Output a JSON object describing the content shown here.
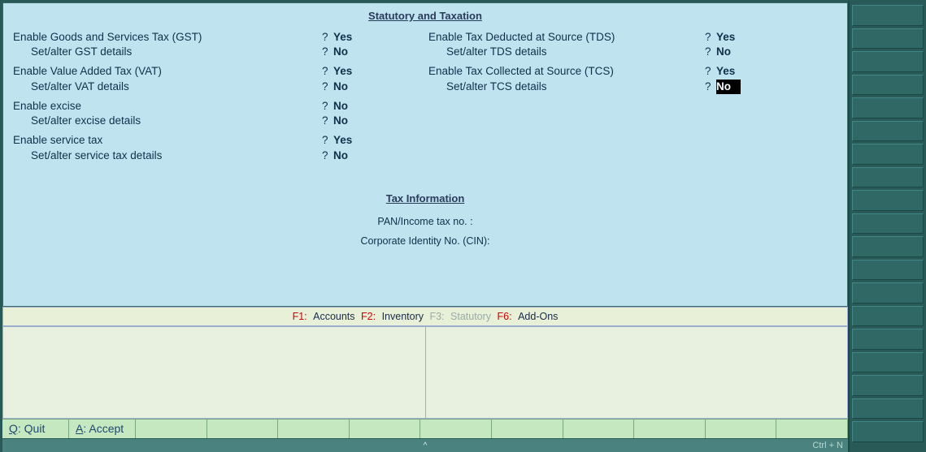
{
  "colors": {
    "panel_bg": "#bfe4f0",
    "text": "#10304a",
    "heading": "#2a3a5a",
    "func_red": "#cc0000",
    "func_disabled": "#9aa",
    "bottom_bg": "#c5e8c0",
    "rail_bg": "#2a5a57",
    "rail_btn": "#2f6865",
    "status_bg": "#4a8280",
    "highlight_bg": "#000000",
    "highlight_fg": "#ffffff"
  },
  "headings": {
    "statutory": "Statutory and Taxation",
    "tax_info": "Tax Information"
  },
  "left_column": {
    "gst": {
      "label": "Enable Goods and Services Tax (GST)",
      "value": "Yes",
      "sub_label": "Set/alter GST details",
      "sub_value": "No"
    },
    "vat": {
      "label": "Enable Value Added Tax (VAT)",
      "value": "Yes",
      "sub_label": "Set/alter VAT details",
      "sub_value": "No"
    },
    "excise": {
      "label": "Enable excise",
      "value": "No",
      "sub_label": "Set/alter excise details",
      "sub_value": "No"
    },
    "service": {
      "label": "Enable service tax",
      "value": "Yes",
      "sub_label": "Set/alter service tax details",
      "sub_value": "No"
    }
  },
  "right_column": {
    "tds": {
      "label": "Enable Tax Deducted at Source (TDS)",
      "value": "Yes",
      "sub_label": "Set/alter TDS details",
      "sub_value": "No"
    },
    "tcs": {
      "label": "Enable Tax Collected at Source (TCS)",
      "value": "Yes",
      "sub_label": "Set/alter TCS details",
      "sub_value": "No",
      "sub_highlighted": true
    }
  },
  "tax_info_fields": {
    "pan_label": "PAN/Income tax no. :",
    "cin_label": "Corporate Identity No. (CIN):"
  },
  "func_bar": {
    "f1_key": "F1:",
    "f1_label": "Accounts",
    "f2_key": "F2:",
    "f2_label": "Inventory",
    "f3_key": "F3:",
    "f3_label": "Statutory",
    "f6_key": "F6:",
    "f6_label": "Add-Ons"
  },
  "bottom_buttons": {
    "quit_key": "Q",
    "quit_label": ": Quit",
    "accept_key": "A",
    "accept_label": ": Accept"
  },
  "status": {
    "hotkey": "Ctrl + N",
    "caret": "^"
  },
  "right_rail": {
    "button_count": 19
  }
}
